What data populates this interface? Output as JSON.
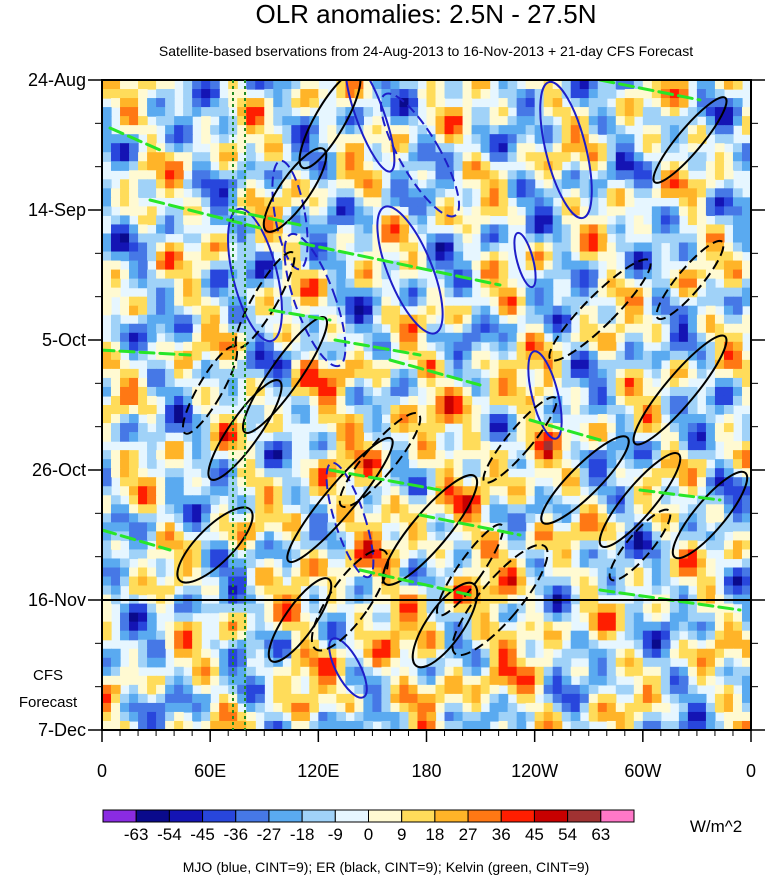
{
  "chart_data": {
    "type": "heatmap",
    "title": "OLR anomalies: 2.5N - 27.5N",
    "subtitle": "Satellite-based bservations from 24-Aug-2013 to 16-Nov-2013 + 21-day CFS Forecast",
    "x_ticks": [
      "0",
      "60E",
      "120E",
      "180",
      "120W",
      "60W",
      "0"
    ],
    "x_range_deg_east": [
      0,
      360
    ],
    "y_ticks": [
      "24-Aug",
      "14-Sep",
      "5-Oct",
      "26-Oct",
      "16-Nov",
      "7-Dec"
    ],
    "y_range_dates": [
      "24-Aug-2013",
      "7-Dec-2013"
    ],
    "forecast_start": "16-Nov",
    "forecast_label": [
      "CFS",
      "Forecast"
    ],
    "colorbar": {
      "labels": [
        "-63",
        "-54",
        "-45",
        "-36",
        "-27",
        "-18",
        "-9",
        "0",
        "9",
        "18",
        "27",
        "36",
        "45",
        "54",
        "63"
      ],
      "colors": [
        "#8a2be2",
        "#0a0a8c",
        "#1414b4",
        "#2846dc",
        "#4678e6",
        "#5aaaf0",
        "#a0d2f8",
        "#e6f6ff",
        "#fffad2",
        "#ffdc5a",
        "#ffb428",
        "#ff7814",
        "#ff1e00",
        "#c80000",
        "#a03232",
        "#ff78c8"
      ],
      "units": "W/m^2"
    },
    "caption": "MJO (blue, CINT=9); ER (black, CINT=9); Kelvin (green, CINT=9)",
    "contour_colors": {
      "mjo": "#1e1ec8",
      "er": "#000000",
      "kelvin": "#28e628",
      "reference": "#228b22"
    }
  }
}
